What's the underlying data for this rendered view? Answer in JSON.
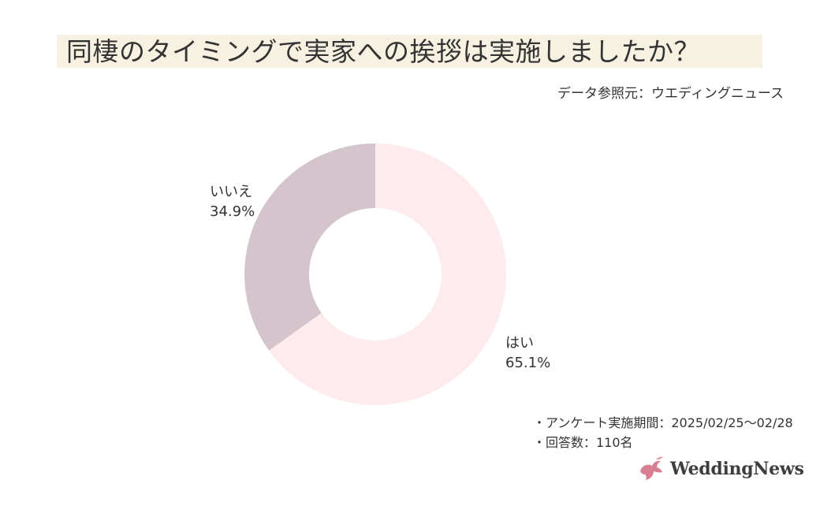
{
  "title": "同棲のタイミングで実家への挨拶は実施しましたか？",
  "source": "データ参照元：ウエディングニュース",
  "notes": {
    "period": "・アンケート実施期間：2025/02/25〜02/28",
    "respondents": "・回答数：110名"
  },
  "logo": {
    "text": "WeddingNews",
    "icon": "dove-icon",
    "color": "#d87f93"
  },
  "chart_data": {
    "type": "pie",
    "title": "同棲のタイミングで実家への挨拶は実施しましたか？",
    "slices": [
      {
        "label": "はい",
        "value_label": "65.1%",
        "value": 65.1,
        "color": "#fdebee"
      },
      {
        "label": "いいえ",
        "value_label": "34.9%",
        "value": 34.9,
        "color": "#d4c4cb"
      }
    ],
    "donut": true,
    "start_angle": "12 o'clock",
    "direction": "clockwise"
  }
}
